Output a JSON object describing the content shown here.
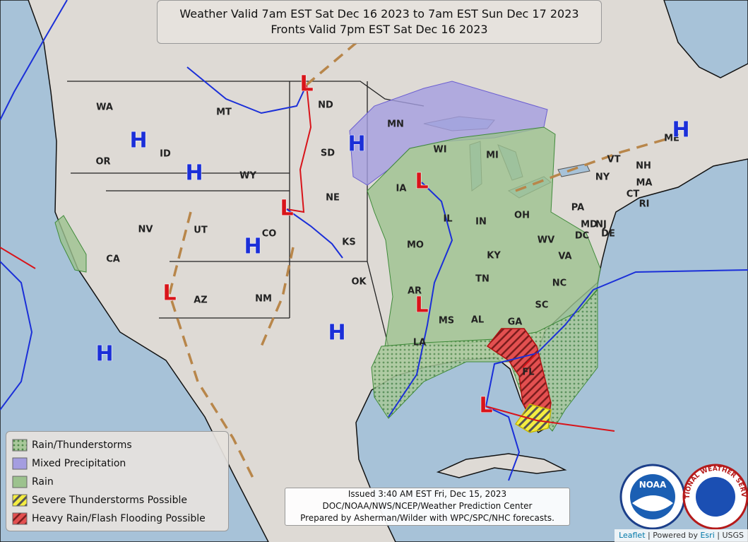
{
  "header": {
    "lines": [
      "Weather Valid 7am EST Sat Dec 16 2023 to 7am EST Sun Dec 17 2023",
      "Fronts Valid 7pm EST Sat Dec 16 2023"
    ]
  },
  "states": [
    "WA",
    "OR",
    "ID",
    "MT",
    "WY",
    "NV",
    "CA",
    "UT",
    "CO",
    "AZ",
    "NM",
    "ND",
    "SD",
    "NE",
    "KS",
    "OK",
    "MN",
    "WI",
    "MI",
    "IA",
    "IL",
    "IN",
    "OH",
    "MO",
    "KY",
    "TN",
    "AR",
    "MS",
    "AL",
    "GA",
    "LA",
    "FL",
    "SC",
    "NC",
    "VA",
    "WV",
    "PA",
    "NY",
    "VT",
    "NH",
    "ME",
    "MA",
    "CT",
    "RI",
    "NJ",
    "DE",
    "MD",
    "DC"
  ],
  "pressure_centers": [
    {
      "label": "H",
      "color": "#1b2fd8"
    },
    {
      "label": "H",
      "color": "#1b2fd8"
    },
    {
      "label": "H",
      "color": "#1b2fd8"
    },
    {
      "label": "H",
      "color": "#1b2fd8"
    },
    {
      "label": "H",
      "color": "#1b2fd8"
    },
    {
      "label": "H",
      "color": "#1b2fd8"
    },
    {
      "label": "H",
      "color": "#1b2fd8"
    },
    {
      "label": "L",
      "color": "#d8141a"
    },
    {
      "label": "L",
      "color": "#d8141a"
    },
    {
      "label": "L",
      "color": "#d8141a"
    },
    {
      "label": "L",
      "color": "#d8141a"
    },
    {
      "label": "L",
      "color": "#d8141a"
    },
    {
      "label": "L",
      "color": "#d8141a"
    }
  ],
  "legend": {
    "items": [
      "Rain/Thunderstorms",
      "Mixed Precipitation",
      "Rain",
      "Severe Thunderstorms Possible",
      "Heavy Rain/Flash Flooding Possible"
    ]
  },
  "issued": {
    "lines": [
      "Issued  3:40 AM EST Fri, Dec 15, 2023",
      "DOC/NOAA/NWS/NCEP/Weather Prediction Center",
      "Prepared by Asherman/Wilder with WPC/SPC/NHC forecasts."
    ]
  },
  "logos": {
    "noaa": "NOAA",
    "nws": "NATIONAL WEATHER SERVICE"
  },
  "attribution": {
    "leaflet": "Leaflet",
    "powered": "| Powered by",
    "esri": "Esri",
    "usgs": "| USGS"
  }
}
